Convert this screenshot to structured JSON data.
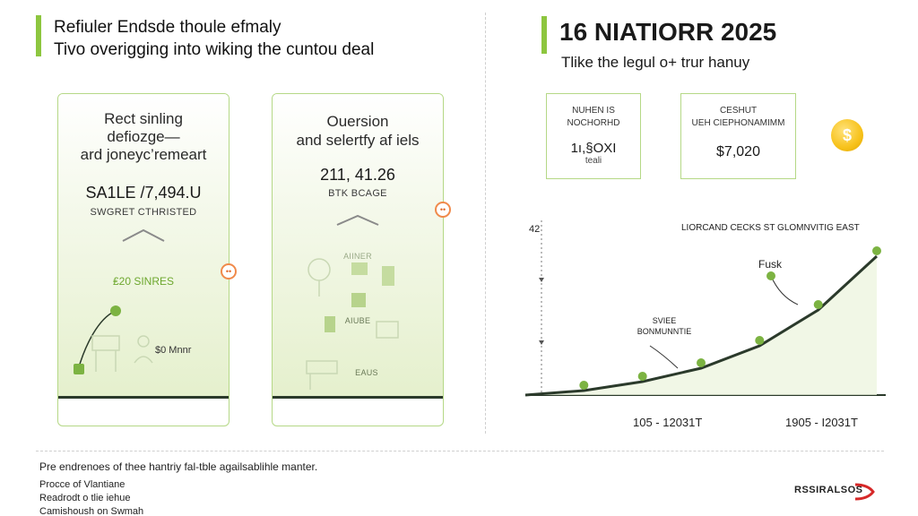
{
  "header": {
    "title_line1": "Refiuler Endsde thoule efmaly",
    "title_line2": "Tivo overigging into wiking the cuntou deal"
  },
  "right_header": {
    "title": "16 NIATIORR 2025",
    "subtitle": "Tlike the legul o+ trur hanuy"
  },
  "panel_left": {
    "heading_line1": "Rect sinling",
    "heading_line2": "defiozge—",
    "heading_line3": "ard joneyc’remeart",
    "sale": "SA1LE /7,494.U",
    "caption": "SWGRET CTHRISTED",
    "shares_label": "₤20 SINRES",
    "amount_label": "$0 Mnnr"
  },
  "panel_middle": {
    "heading_line1": "Ouersion",
    "heading_line2": "and selertfy af iels",
    "number": "211, 41.26",
    "caption": "BTK BCAGE",
    "label_top": "AIINER",
    "label_mid": "AIUBE",
    "label_bot": "EAUS"
  },
  "connectors": {
    "left": "••",
    "right": "••"
  },
  "stat_boxes": [
    {
      "label_line1": "NUHEN IS",
      "label_line2": "NOCHORHD",
      "value": "1ı,§OXI",
      "sub": "teali"
    },
    {
      "label_line1": "CESHUT",
      "label_line2": "UEH CIEPHONAMIMM",
      "value": "$7,020"
    }
  ],
  "coin": {
    "icon": "dollar-coin-icon",
    "symbol": "$"
  },
  "chart_data": {
    "type": "line",
    "title": "LIORCAND CECKS ST GLOMNVITIG EAST",
    "ytick": "42",
    "x_labels": [
      "105 - 12031T",
      "1905 - I2031T"
    ],
    "series": [
      {
        "values": [
          0,
          1,
          3,
          6,
          11,
          19,
          31
        ]
      }
    ],
    "annotations": [
      {
        "text_line1": "SVIEE",
        "text_line2": "BONMUNNTIE"
      },
      {
        "text": "Fusk"
      }
    ],
    "grid": false
  },
  "footer": {
    "note": "Pre endrenoes of thee hantriy fal-tble agailsablihle manter.",
    "line1": "Procce of Vlantiane",
    "line2": "Readrodt o tlie iehue",
    "line3": "Camishoush on Swmah"
  },
  "brand": {
    "name": "RSSIRALSOS"
  },
  "colors": {
    "accent": "#8dc63f",
    "panel_border": "#b5d886",
    "line": "#2b3a2b",
    "connector": "#f08a4b",
    "coin": "#f7c21b",
    "brand_red": "#d62828"
  }
}
